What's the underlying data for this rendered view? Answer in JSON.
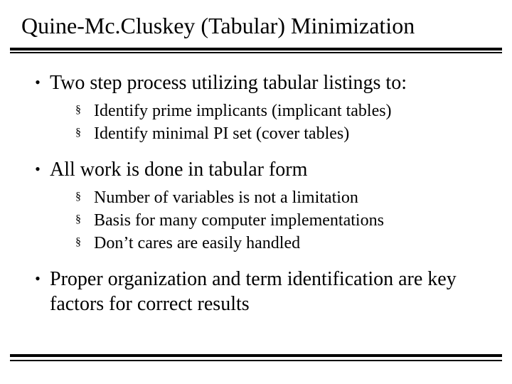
{
  "title": "Quine-Mc.Cluskey (Tabular) Minimization",
  "glyphs": {
    "dot": "•",
    "square": "§"
  },
  "bullets": [
    {
      "text": "Two step process utilizing tabular listings to:",
      "sub": [
        "Identify prime implicants (implicant tables)",
        "Identify minimal PI set (cover tables)"
      ]
    },
    {
      "text": "All work is done in tabular form",
      "sub": [
        "Number of variables is not a limitation",
        "Basis for many computer implementations",
        "Don’t cares are easily handled"
      ]
    },
    {
      "text": "Proper organization and term identification are key factors for correct results",
      "sub": []
    }
  ]
}
